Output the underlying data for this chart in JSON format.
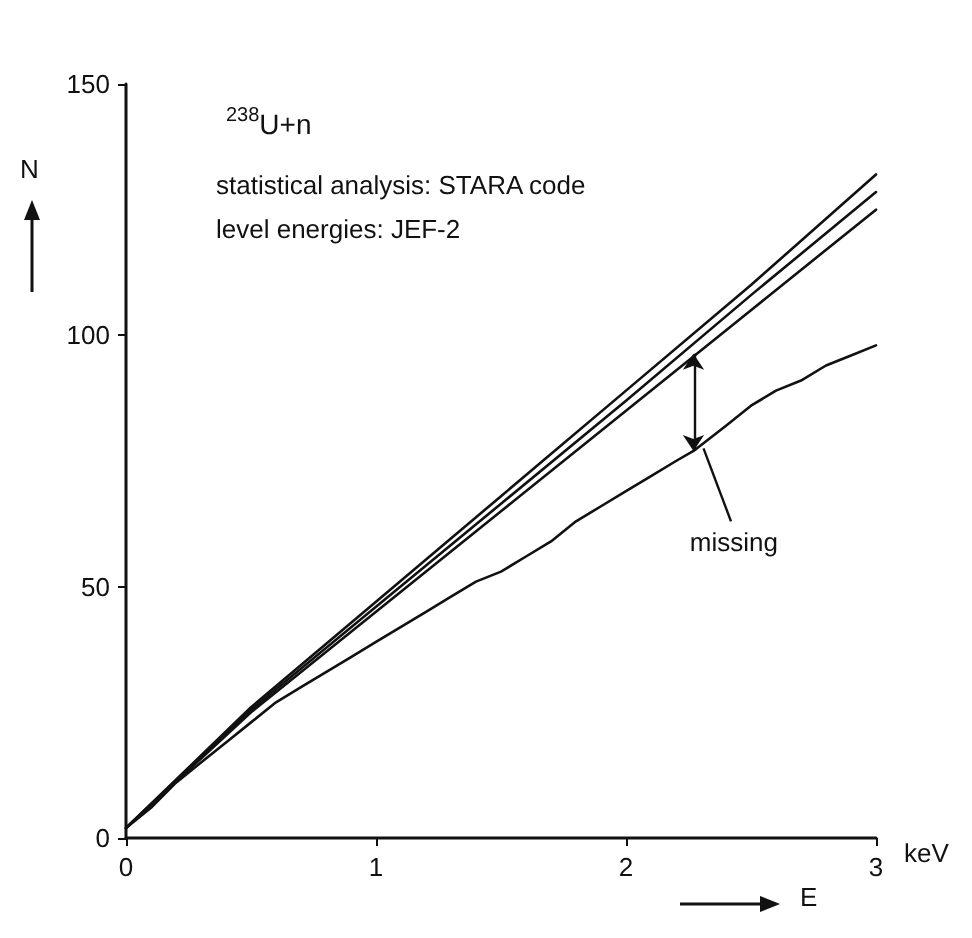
{
  "chart_data": {
    "type": "line",
    "title": "$^{238}$U+n",
    "xlabel": "E",
    "ylabel": "N",
    "annotations": [
      "statistical analysis: STARA code",
      "level energies: JEF-2",
      "keV",
      {
        "text": "missing",
        "x": 2.27,
        "y": 77
      }
    ],
    "xlim": [
      0,
      3
    ],
    "ylim": [
      0,
      150
    ],
    "xticks": [
      0,
      1,
      2,
      3
    ],
    "yticks": [
      0,
      50,
      100,
      150
    ],
    "grid": false,
    "marker": "none",
    "line_style": "solid",
    "series": [
      {
        "color": "#111111",
        "x": [
          0,
          0.5,
          1,
          1.5,
          2,
          2.5,
          3
        ],
        "values": [
          2,
          26,
          47,
          68,
          89,
          110,
          132
        ]
      },
      {
        "color": "#111111",
        "x": [
          0,
          0.5,
          1,
          1.5,
          2,
          2.5,
          3
        ],
        "values": [
          2,
          25.5,
          46,
          66.5,
          87,
          108,
          128.5
        ]
      },
      {
        "color": "#111111",
        "x": [
          0,
          0.5,
          1,
          1.5,
          2,
          2.5,
          3
        ],
        "values": [
          2,
          25,
          45,
          65,
          85,
          105,
          125
        ]
      },
      {
        "color": "#111111",
        "x": [
          0,
          0.1,
          0.2,
          0.3,
          0.4,
          0.5,
          0.6,
          0.7,
          0.8,
          0.9,
          1,
          1.1,
          1.2,
          1.3,
          1.4,
          1.5,
          1.6,
          1.7,
          1.8,
          1.9,
          2,
          2.1,
          2.2,
          2.27,
          2.4,
          2.5,
          2.6,
          2.7,
          2.8,
          2.9,
          3
        ],
        "values": [
          2,
          6,
          11,
          15,
          19,
          23,
          27,
          30,
          33,
          36,
          39,
          42,
          45,
          48,
          51,
          53,
          56,
          59,
          63,
          66,
          69,
          72,
          75,
          77,
          82,
          86,
          89,
          91,
          94,
          96,
          98
        ]
      }
    ]
  }
}
